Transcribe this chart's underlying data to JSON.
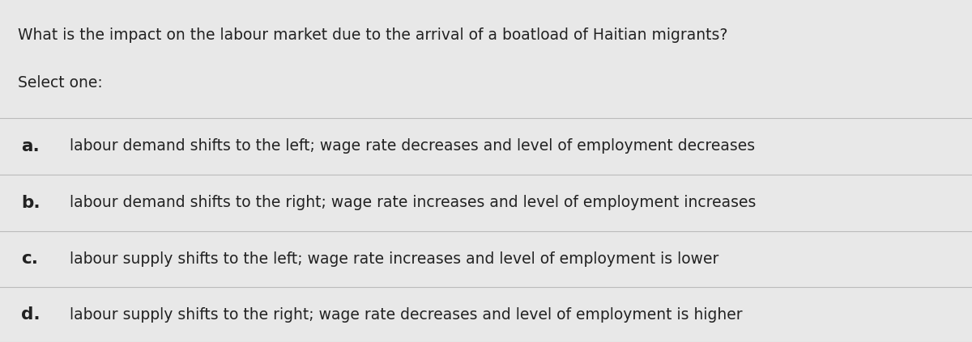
{
  "background_color": "#e8e8e8",
  "question_line1": "What is the impact on the labour market due to the arrival of a boatload of Haitian migrants?",
  "question_line2": "Select one:",
  "options": [
    {
      "label": "a.",
      "text": "labour demand shifts to the left; wage rate decreases and level of employment decreases"
    },
    {
      "label": "b.",
      "text": "labour demand shifts to the right; wage rate increases and level of employment increases"
    },
    {
      "label": "c.",
      "text": "labour supply shifts to the left; wage rate increases and level of employment is lower"
    },
    {
      "label": "d.",
      "text": "labour supply shifts to the right; wage rate decreases and level of employment is higher"
    }
  ],
  "text_color": "#222222",
  "label_color": "#222222",
  "divider_color": "#bbbbbb",
  "question_fontsize": 13.5,
  "option_label_fontsize": 15.5,
  "option_text_fontsize": 13.5,
  "fig_width": 12.0,
  "fig_height": 4.23
}
